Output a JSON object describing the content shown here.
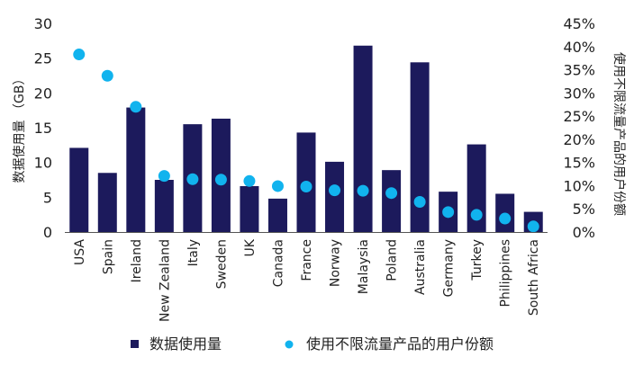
{
  "chart_data": {
    "type": "bar",
    "categories": [
      "USA",
      "Spain",
      "Ireland",
      "New Zealand",
      "Italy",
      "Sweden",
      "UK",
      "Canada",
      "France",
      "Norway",
      "Malaysia",
      "Poland",
      "Australia",
      "Germany",
      "Turkey",
      "Philippines",
      "South Africa"
    ],
    "series": [
      {
        "name": "数据使用量",
        "type": "bar",
        "axis": "left",
        "values": [
          12.1,
          8.5,
          17.9,
          7.5,
          15.5,
          16.3,
          6.6,
          4.8,
          14.3,
          10.1,
          26.8,
          8.9,
          24.4,
          5.8,
          12.6,
          5.5,
          2.9
        ]
      },
      {
        "name": "使用不限流量产品的用户份额",
        "type": "scatter",
        "axis": "right",
        "values": [
          0.383,
          0.337,
          0.27,
          0.121,
          0.114,
          0.113,
          0.11,
          0.099,
          0.098,
          0.09,
          0.089,
          0.084,
          0.065,
          0.043,
          0.037,
          0.029,
          0.012
        ]
      }
    ],
    "ylabel": "数据使用量 （GB）",
    "ylabel_right": "使用不限流量产品的用户份额",
    "ylim": [
      0,
      30
    ],
    "yticks": [
      "0",
      "5",
      "10",
      "15",
      "20",
      "25",
      "30"
    ],
    "ylim_right": [
      0,
      0.45
    ],
    "yticks_right": [
      "0%",
      "5%",
      "10%",
      "15%",
      "20%",
      "25%",
      "30%",
      "35%",
      "40%",
      "45%"
    ],
    "legend": {
      "position": "bottom",
      "items": [
        "数据使用量",
        "使用不限流量产品的用户份额"
      ]
    },
    "grid": false
  },
  "colors": {
    "bar": "#1c1a5c",
    "dot": "#11b3ee",
    "axis": "#555555"
  }
}
